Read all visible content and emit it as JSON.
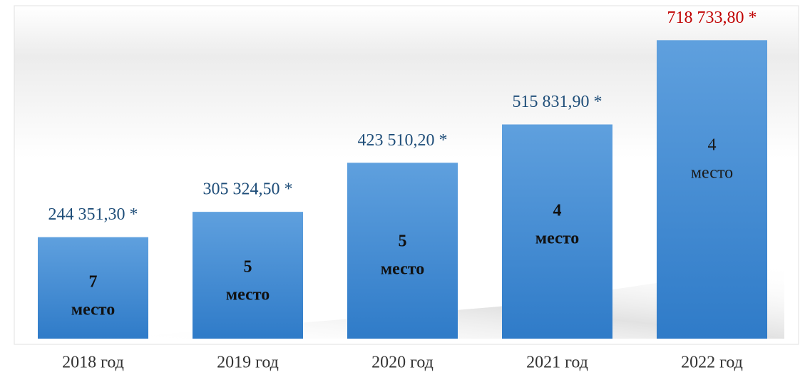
{
  "chart_data": {
    "type": "bar",
    "categories": [
      "2018 год",
      "2019 год",
      "2020 год",
      "2021 год",
      "2022 год"
    ],
    "values": [
      244351.3,
      305324.5,
      423510.2,
      515831.9,
      718733.8
    ],
    "value_labels": [
      "244 351,30 *",
      "305 324,50 *",
      "423 510,20 *",
      "515 831,90 *",
      "718 733,80 *"
    ],
    "value_label_colors": [
      "#1f4e79",
      "#1f4e79",
      "#1f4e79",
      "#1f4e79",
      "#c00000"
    ],
    "color": "#4a8fd6",
    "ylim": [
      0,
      800000
    ],
    "ranks": [
      {
        "number": "7",
        "word": "место",
        "bold": true
      },
      {
        "number": "5",
        "word": "место",
        "bold": true
      },
      {
        "number": "5",
        "word": "место",
        "bold": true
      },
      {
        "number": "4",
        "word": "место",
        "bold": true
      },
      {
        "number": "4",
        "word": "место",
        "bold": false
      }
    ]
  }
}
